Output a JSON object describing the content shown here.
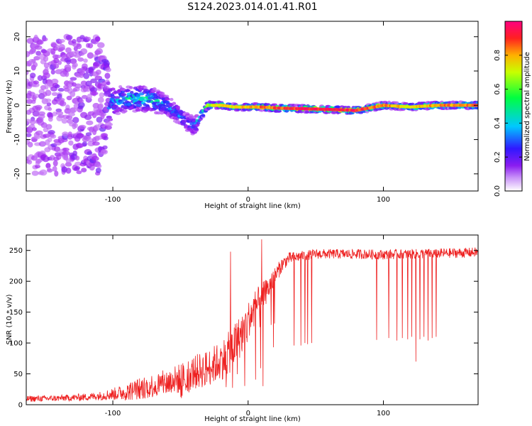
{
  "title": "S124.2023.014.01.41.R01",
  "chart_data": [
    {
      "type": "heatmap",
      "title": "",
      "xlabel": "Height of straight line (km)",
      "ylabel": "Frequency (Hz)",
      "xlim": [
        -164,
        170
      ],
      "ylim": [
        -25,
        24.5
      ],
      "xticks": [
        -100,
        0,
        100
      ],
      "xtick_labels": [
        "-100",
        "0",
        "100"
      ],
      "yticks": [
        -20,
        -10,
        0,
        10,
        20
      ],
      "ytick_labels": [
        "-20",
        "-10",
        "0",
        "10",
        "20"
      ],
      "colorbar": {
        "label": "Normalized spectral amplitude",
        "range": [
          0,
          1
        ],
        "ticks": [
          0.0,
          0.2,
          0.4,
          0.6,
          0.8
        ],
        "tick_labels": [
          "0.0",
          "0.2",
          "0.4",
          "0.6",
          "0.8"
        ],
        "colors": [
          "#ffffff",
          "#a020f0",
          "#3020ff",
          "#00c8ff",
          "#00ff60",
          "#c8ff00",
          "#ffc800",
          "#ff3030",
          "#ff0078"
        ]
      },
      "ridge": {
        "description_points_x": [
          -160,
          -110,
          -100,
          -90,
          -80,
          -70,
          -60,
          -50,
          -45,
          -40,
          -35,
          -30,
          -25,
          -20,
          -10,
          0,
          10,
          20,
          40,
          60,
          80,
          100,
          120,
          140,
          170
        ],
        "frequency_hz": [
          0,
          0,
          1,
          2,
          2,
          1.5,
          0,
          -3,
          -5,
          -6,
          -3,
          0,
          0,
          0,
          -0.5,
          -0.5,
          -0.5,
          -0.8,
          -1,
          -1.2,
          -1.5,
          0,
          -0.5,
          0,
          0
        ],
        "amplitude": [
          0.25,
          0.3,
          0.35,
          0.45,
          0.5,
          0.45,
          0.4,
          0.35,
          0.3,
          0.35,
          0.45,
          0.6,
          0.65,
          0.7,
          0.7,
          0.75,
          0.8,
          0.85,
          0.9,
          0.95,
          0.9,
          0.8,
          0.7,
          0.8,
          0.8
        ],
        "spread_hz": [
          20,
          20,
          5,
          4,
          4,
          4,
          3,
          3,
          3,
          3,
          2,
          1.2,
          1,
          1,
          1,
          1,
          1,
          1,
          1,
          1,
          1,
          1,
          1,
          1,
          1
        ]
      },
      "grid": false
    },
    {
      "type": "line",
      "title": "",
      "xlabel": "Height of straight line (km)",
      "ylabel": "SNR (10 * v/v)",
      "xlim": [
        -164,
        170
      ],
      "ylim": [
        0,
        275
      ],
      "xticks": [
        -100,
        0,
        100
      ],
      "xtick_labels": [
        "-100",
        "0",
        "100"
      ],
      "yticks": [
        0,
        50,
        100,
        150,
        200,
        250
      ],
      "ytick_labels": [
        "0",
        "50",
        "100",
        "150",
        "200",
        "250"
      ],
      "series": [
        {
          "color": "#ee2020",
          "x": [
            -164,
            -140,
            -120,
            -110,
            -100,
            -90,
            -80,
            -70,
            -60,
            -50,
            -40,
            -30,
            -20,
            -15,
            -10,
            -5,
            0,
            5,
            10,
            15,
            20,
            25,
            30,
            40,
            50,
            60,
            80,
            100,
            120,
            140,
            160,
            170
          ],
          "y": [
            10,
            11,
            13,
            15,
            18,
            22,
            28,
            33,
            38,
            45,
            55,
            62,
            75,
            85,
            100,
            118,
            140,
            160,
            175,
            190,
            210,
            228,
            238,
            242,
            245,
            245,
            245,
            244,
            245,
            246,
            247,
            248
          ],
          "noise": [
            5,
            5,
            6,
            7,
            10,
            14,
            18,
            20,
            22,
            25,
            28,
            30,
            32,
            35,
            35,
            35,
            30,
            28,
            25,
            18,
            15,
            12,
            10,
            8,
            8,
            8,
            8,
            8,
            8,
            8,
            8,
            8
          ],
          "dropouts": [
            {
              "x": -13,
              "y": 248
            },
            {
              "x": 10,
              "y": 268
            },
            {
              "x": 11,
              "y": 30
            },
            {
              "x": 34,
              "y": 96
            },
            {
              "x": 39,
              "y": 96
            },
            {
              "x": 42,
              "y": 100
            },
            {
              "x": 44,
              "y": 98
            },
            {
              "x": 47,
              "y": 100
            },
            {
              "x": 95,
              "y": 105
            },
            {
              "x": 104,
              "y": 108
            },
            {
              "x": 110,
              "y": 104
            },
            {
              "x": 114,
              "y": 108
            },
            {
              "x": 118,
              "y": 106
            },
            {
              "x": 121,
              "y": 110
            },
            {
              "x": 124,
              "y": 70
            },
            {
              "x": 127,
              "y": 106
            },
            {
              "x": 130,
              "y": 110
            },
            {
              "x": 133,
              "y": 104
            },
            {
              "x": 136,
              "y": 108
            },
            {
              "x": 139,
              "y": 110
            }
          ]
        }
      ],
      "grid": false
    }
  ]
}
